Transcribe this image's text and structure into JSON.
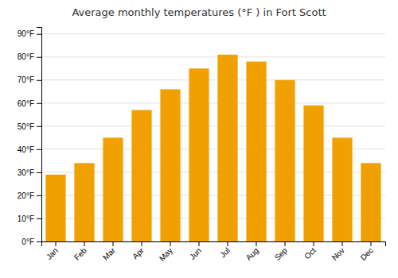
{
  "chart_data": {
    "type": "bar",
    "title": "Average monthly temperatures (°F ) in Fort Scott",
    "categories": [
      "Jan",
      "Feb",
      "Mar",
      "Apr",
      "May",
      "Jun",
      "Jul",
      "Aug",
      "Sep",
      "Oct",
      "Nov",
      "Dec"
    ],
    "values": [
      29,
      34,
      45,
      57,
      66,
      75,
      81,
      78,
      70,
      59,
      45,
      34
    ],
    "color": "#F0A000",
    "ylim": [
      0,
      93
    ],
    "yticks": [
      {
        "value": 0,
        "label": "0°F"
      },
      {
        "value": 10,
        "label": "10°F"
      },
      {
        "value": 20,
        "label": "20°F"
      },
      {
        "value": 30,
        "label": "30°F"
      },
      {
        "value": 40,
        "label": "40°F"
      },
      {
        "value": 50,
        "label": "50°F"
      },
      {
        "value": 60,
        "label": "60°F"
      },
      {
        "value": 70,
        "label": "70°F"
      },
      {
        "value": 80,
        "label": "80°F"
      },
      {
        "value": 90,
        "label": "90°F"
      }
    ],
    "grid": true
  }
}
